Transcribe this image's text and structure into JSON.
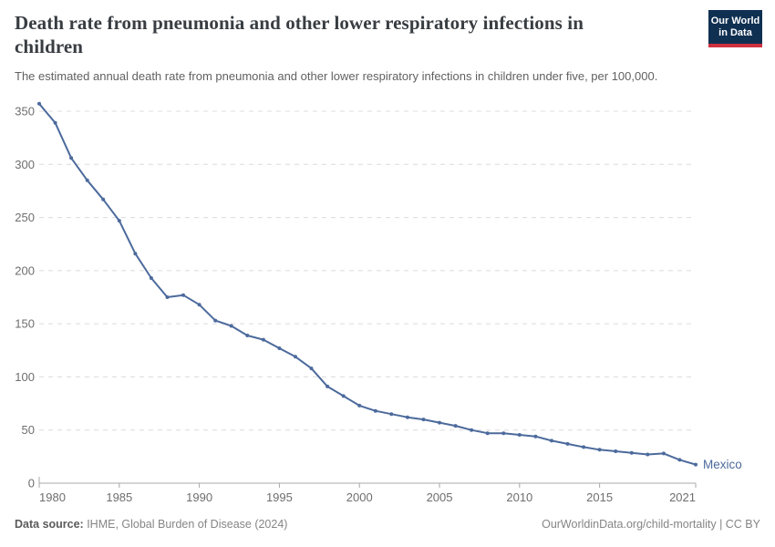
{
  "logo": {
    "line1": "Our World",
    "line2": "in Data"
  },
  "chart_data": {
    "type": "line",
    "title": "Death rate from pneumonia and other lower respiratory infections in children",
    "title_lines": [
      "Death rate from pneumonia and other lower respiratory infections in",
      "children"
    ],
    "subtitle": "The estimated annual death rate from pneumonia and other lower respiratory infections in children under five, per 100,000.",
    "x": [
      1980,
      1981,
      1982,
      1983,
      1984,
      1985,
      1986,
      1987,
      1988,
      1989,
      1990,
      1991,
      1992,
      1993,
      1994,
      1995,
      1996,
      1997,
      1998,
      1999,
      2000,
      2001,
      2002,
      2003,
      2004,
      2005,
      2006,
      2007,
      2008,
      2009,
      2010,
      2011,
      2012,
      2013,
      2014,
      2015,
      2016,
      2017,
      2018,
      2019,
      2020,
      2021
    ],
    "series": [
      {
        "name": "Mexico",
        "color": "#4c6a9c",
        "values": [
          357,
          339,
          306,
          285,
          267,
          247,
          216,
          193,
          175,
          177,
          168,
          153,
          148,
          139,
          135,
          127,
          119,
          108,
          91,
          82,
          73,
          68,
          65,
          62,
          60,
          57,
          54,
          50,
          47,
          47,
          45.5,
          44,
          40,
          37,
          34,
          31.5,
          30,
          28.5,
          27,
          28,
          22,
          17.5
        ]
      }
    ],
    "xlim": [
      1980,
      2021
    ],
    "ylim": [
      0,
      360
    ],
    "xticks": [
      1980,
      1985,
      1990,
      1995,
      2000,
      2005,
      2010,
      2015,
      2021
    ],
    "xtick_labels": [
      "1980",
      "1985",
      "1990",
      "1995",
      "2000",
      "2005",
      "2010",
      "2015",
      "2021"
    ],
    "yticks": [
      0,
      50,
      100,
      150,
      200,
      250,
      300,
      350
    ],
    "ytick_labels": [
      "0",
      "50",
      "100",
      "150",
      "200",
      "250",
      "300",
      "350"
    ],
    "grid": "horizontal-dashed",
    "legend": "end-of-line-label",
    "colors": {
      "line": "#4c6a9c",
      "gridline": "#dcdcdc",
      "axis": "#a8a8a8",
      "tick_label": "#6e6e6e"
    }
  },
  "footer": {
    "source_label": "Data source:",
    "source_value": " IHME, Global Burden of Disease (2024)",
    "credit": "OurWorldinData.org/child-mortality | CC BY"
  }
}
